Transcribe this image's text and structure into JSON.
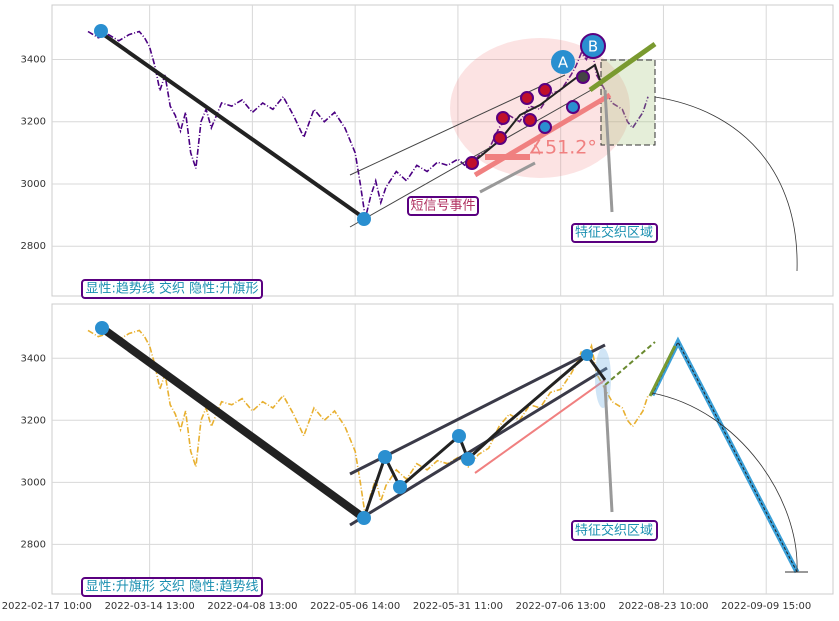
{
  "chart_data": [
    {
      "type": "line",
      "x": [
        8,
        9,
        10,
        12,
        14,
        16,
        18,
        19,
        20,
        21,
        22,
        23,
        24,
        25,
        26,
        27,
        28,
        29,
        30,
        31,
        32,
        34,
        36,
        38,
        40,
        42,
        44,
        46,
        48,
        50,
        52,
        54,
        56,
        58,
        60,
        61,
        62,
        63,
        64,
        65,
        66,
        68,
        70,
        72,
        74,
        76,
        78,
        80,
        82,
        84,
        86,
        88,
        90,
        92,
        94,
        96,
        98,
        100,
        102,
        103,
        104,
        105,
        106,
        107,
        108,
        110,
        112,
        113,
        114,
        116,
        117
      ],
      "series": [
        {
          "color": "#4b0082",
          "values": [
            3490,
            3480,
            3470,
            3480,
            3460,
            3480,
            3490,
            3470,
            3440,
            3380,
            3300,
            3350,
            3250,
            3220,
            3170,
            3230,
            3100,
            3050,
            3200,
            3240,
            3180,
            3260,
            3250,
            3270,
            3230,
            3260,
            3240,
            3280,
            3220,
            3150,
            3240,
            3200,
            3230,
            3180,
            3100,
            3000,
            2890,
            2960,
            3010,
            2940,
            2990,
            3040,
            3010,
            3060,
            3040,
            3070,
            3060,
            3080,
            3050,
            3090,
            3110,
            3180,
            3220,
            3200,
            3250,
            3240,
            3290,
            3300,
            3350,
            3380,
            3420,
            3400,
            3440,
            3350,
            3320,
            3260,
            3240,
            3200,
            3180,
            3230,
            3280
          ]
        }
      ],
      "xlim": [
        1,
        153
      ],
      "ylim": [
        2640,
        3575
      ],
      "yticks": [
        2800,
        3000,
        3200,
        3400
      ],
      "grid": true,
      "annotations": {
        "short_signal": "短信号事件",
        "zone": "特征交织区域",
        "angle": "∡51.2°",
        "point_a": "A",
        "point_b": "B",
        "legend": "显性:趋势线 交织 隐性:升旗形"
      }
    },
    {
      "type": "line",
      "x": [
        8,
        9,
        10,
        12,
        14,
        16,
        18,
        19,
        20,
        21,
        22,
        23,
        24,
        25,
        26,
        27,
        28,
        29,
        30,
        31,
        32,
        34,
        36,
        38,
        40,
        42,
        44,
        46,
        48,
        50,
        52,
        54,
        56,
        58,
        60,
        61,
        62,
        63,
        64,
        65,
        66,
        68,
        70,
        72,
        74,
        76,
        78,
        80,
        82,
        84,
        86,
        88,
        90,
        92,
        94,
        96,
        98,
        100,
        102,
        103,
        104,
        105,
        106,
        107,
        108,
        110,
        112,
        113,
        114,
        116,
        117
      ],
      "series": [
        {
          "color": "#e8b030",
          "values": [
            3490,
            3480,
            3470,
            3480,
            3460,
            3480,
            3490,
            3470,
            3440,
            3380,
            3300,
            3350,
            3250,
            3220,
            3170,
            3230,
            3100,
            3050,
            3200,
            3240,
            3180,
            3260,
            3250,
            3270,
            3230,
            3260,
            3240,
            3280,
            3220,
            3150,
            3240,
            3200,
            3230,
            3180,
            3100,
            3000,
            2890,
            2960,
            3010,
            2940,
            2990,
            3040,
            3010,
            3060,
            3040,
            3070,
            3060,
            3080,
            3050,
            3090,
            3110,
            3180,
            3220,
            3200,
            3250,
            3240,
            3290,
            3300,
            3350,
            3380,
            3420,
            3400,
            3440,
            3350,
            3320,
            3260,
            3240,
            3200,
            3180,
            3230,
            3280
          ]
        }
      ],
      "xlim": [
        1,
        153
      ],
      "ylim": [
        2640,
        3575
      ],
      "yticks": [
        2800,
        3000,
        3200,
        3400
      ],
      "grid": true,
      "xticks": [
        {
          "value": 0,
          "label": "2022-02-17 10:00"
        },
        {
          "value": 20,
          "label": "2022-03-14 13:00"
        },
        {
          "value": 40,
          "label": "2022-04-08 13:00"
        },
        {
          "value": 60,
          "label": "2022-05-06 14:00"
        },
        {
          "value": 80,
          "label": "2022-05-31 11:00"
        },
        {
          "value": 100,
          "label": "2022-07-06 13:00"
        },
        {
          "value": 120,
          "label": "2022-08-23 10:00"
        },
        {
          "value": 140,
          "label": "2022-09-09 15:00"
        }
      ],
      "annotations": {
        "zone": "特征交织区域",
        "legend": "显性:升旗形 交织 隐性:趋势线"
      }
    }
  ]
}
